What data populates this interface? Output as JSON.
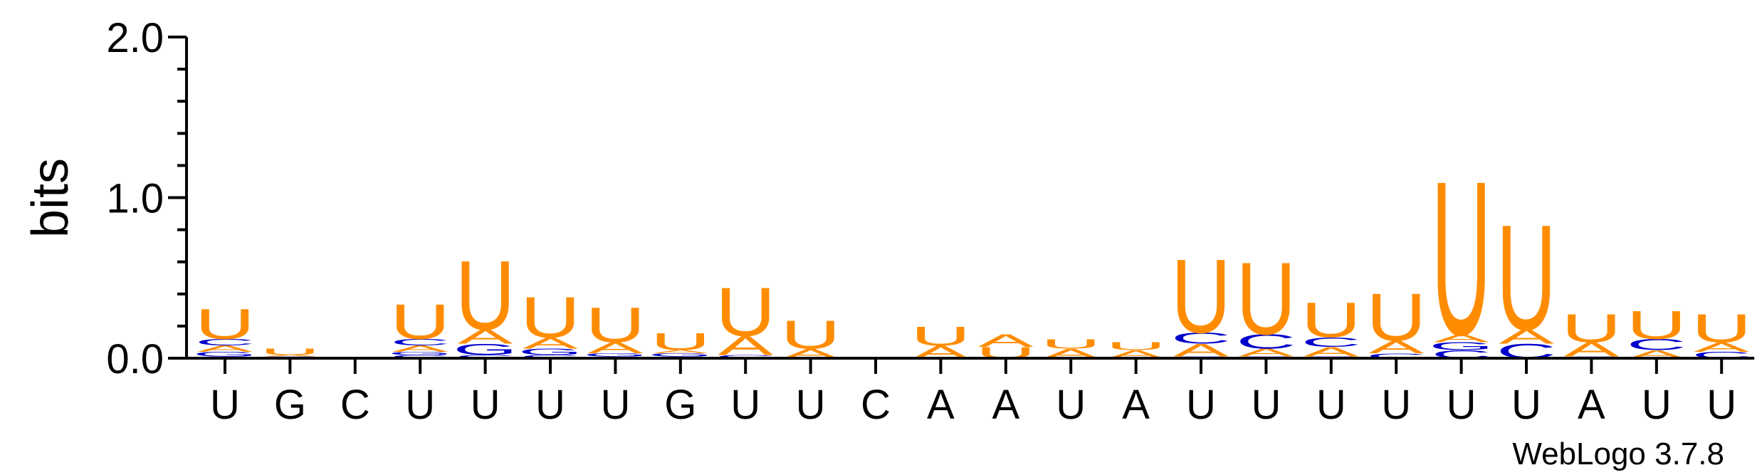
{
  "chart_data": {
    "type": "sequence-logo",
    "ylabel": "bits",
    "ylim": [
      0,
      2.0
    ],
    "yticks": [
      "0.0",
      "1.0",
      "2.0"
    ],
    "credit": "WebLogo 3.7.8",
    "colors": {
      "U": "#ff8c00",
      "A": "#ff8c00",
      "C": "#0000cc",
      "G": "#0000cc"
    },
    "positions": [
      {
        "label": "U",
        "stack": [
          {
            "base": "C",
            "bits": 0.01
          },
          {
            "base": "G",
            "bits": 0.03
          },
          {
            "base": "A",
            "bits": 0.04
          },
          {
            "base": "C",
            "bits": 0.04
          },
          {
            "base": "U",
            "bits": 0.19
          }
        ]
      },
      {
        "label": "G",
        "stack": [
          {
            "base": "G",
            "bits": 0.01
          },
          {
            "base": "A",
            "bits": 0.01
          },
          {
            "base": "U",
            "bits": 0.04
          }
        ]
      },
      {
        "label": "C",
        "stack": [
          {
            "base": "C",
            "bits": 0.005
          }
        ]
      },
      {
        "label": "U",
        "stack": [
          {
            "base": "C",
            "bits": 0.02
          },
          {
            "base": "G",
            "bits": 0.02
          },
          {
            "base": "A",
            "bits": 0.04
          },
          {
            "base": "C",
            "bits": 0.04
          },
          {
            "base": "U",
            "bits": 0.22
          }
        ]
      },
      {
        "label": "U",
        "stack": [
          {
            "base": "C",
            "bits": 0.02
          },
          {
            "base": "G",
            "bits": 0.07
          },
          {
            "base": "A",
            "bits": 0.09
          },
          {
            "base": "U",
            "bits": 0.44
          }
        ]
      },
      {
        "label": "U",
        "stack": [
          {
            "base": "C",
            "bits": 0.02
          },
          {
            "base": "G",
            "bits": 0.04
          },
          {
            "base": "A",
            "bits": 0.07
          },
          {
            "base": "U",
            "bits": 0.26
          }
        ]
      },
      {
        "label": "U",
        "stack": [
          {
            "base": "C",
            "bits": 0.01
          },
          {
            "base": "G",
            "bits": 0.02
          },
          {
            "base": "A",
            "bits": 0.07
          },
          {
            "base": "U",
            "bits": 0.22
          }
        ]
      },
      {
        "label": "G",
        "stack": [
          {
            "base": "C",
            "bits": 0.01
          },
          {
            "base": "G",
            "bits": 0.02
          },
          {
            "base": "A",
            "bits": 0.02
          },
          {
            "base": "U",
            "bits": 0.11
          }
        ]
      },
      {
        "label": "U",
        "stack": [
          {
            "base": "C",
            "bits": 0.02
          },
          {
            "base": "A",
            "bits": 0.12
          },
          {
            "base": "U",
            "bits": 0.31
          }
        ]
      },
      {
        "label": "U",
        "stack": [
          {
            "base": "A",
            "bits": 0.06
          },
          {
            "base": "U",
            "bits": 0.18
          }
        ]
      },
      {
        "label": "C",
        "stack": []
      },
      {
        "label": "A",
        "stack": [
          {
            "base": "A",
            "bits": 0.08
          },
          {
            "base": "U",
            "bits": 0.12
          }
        ]
      },
      {
        "label": "A",
        "stack": [
          {
            "base": "U",
            "bits": 0.07
          },
          {
            "base": "A",
            "bits": 0.08
          }
        ]
      },
      {
        "label": "U",
        "stack": [
          {
            "base": "A",
            "bits": 0.06
          },
          {
            "base": "U",
            "bits": 0.06
          }
        ]
      },
      {
        "label": "A",
        "stack": [
          {
            "base": "A",
            "bits": 0.05
          },
          {
            "base": "U",
            "bits": 0.05
          }
        ]
      },
      {
        "label": "U",
        "stack": [
          {
            "base": "G",
            "bits": 0.01
          },
          {
            "base": "A",
            "bits": 0.08
          },
          {
            "base": "C",
            "bits": 0.07
          },
          {
            "base": "U",
            "bits": 0.47
          }
        ]
      },
      {
        "label": "U",
        "stack": [
          {
            "base": "G",
            "bits": 0.01
          },
          {
            "base": "A",
            "bits": 0.05
          },
          {
            "base": "C",
            "bits": 0.09
          },
          {
            "base": "U",
            "bits": 0.46
          }
        ]
      },
      {
        "label": "U",
        "stack": [
          {
            "base": "G",
            "bits": 0.01
          },
          {
            "base": "A",
            "bits": 0.06
          },
          {
            "base": "C",
            "bits": 0.06
          },
          {
            "base": "U",
            "bits": 0.22
          }
        ]
      },
      {
        "label": "U",
        "stack": [
          {
            "base": "C",
            "bits": 0.03
          },
          {
            "base": "A",
            "bits": 0.08
          },
          {
            "base": "U",
            "bits": 0.3
          }
        ]
      },
      {
        "label": "U",
        "stack": [
          {
            "base": "C",
            "bits": 0.05
          },
          {
            "base": "G",
            "bits": 0.05
          },
          {
            "base": "A",
            "bits": 0.05
          },
          {
            "base": "U",
            "bits": 0.98
          }
        ]
      },
      {
        "label": "U",
        "stack": [
          {
            "base": "C",
            "bits": 0.09
          },
          {
            "base": "A",
            "bits": 0.09
          },
          {
            "base": "U",
            "bits": 0.67
          }
        ]
      },
      {
        "label": "A",
        "stack": [
          {
            "base": "C",
            "bits": 0.01
          },
          {
            "base": "A",
            "bits": 0.09
          },
          {
            "base": "U",
            "bits": 0.18
          }
        ]
      },
      {
        "label": "U",
        "stack": [
          {
            "base": "A",
            "bits": 0.05
          },
          {
            "base": "C",
            "bits": 0.07
          },
          {
            "base": "U",
            "bits": 0.18
          }
        ]
      },
      {
        "label": "U",
        "stack": [
          {
            "base": "C",
            "bits": 0.04
          },
          {
            "base": "A",
            "bits": 0.06
          },
          {
            "base": "U",
            "bits": 0.18
          }
        ]
      }
    ]
  }
}
